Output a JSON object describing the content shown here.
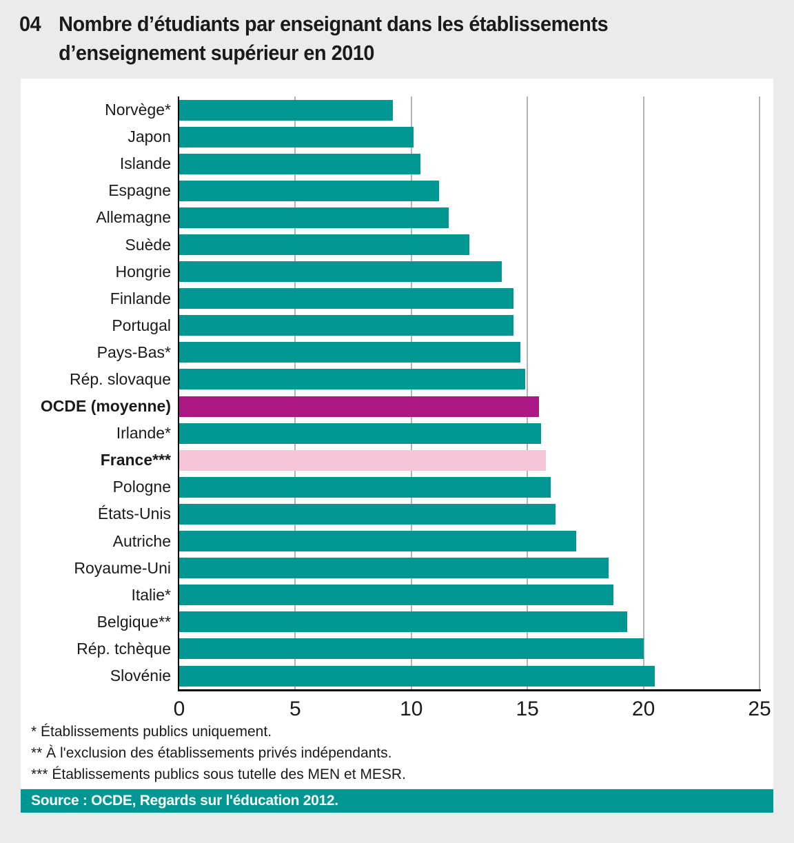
{
  "page": {
    "background": "#ebebeb",
    "panel_background": "#ffffff",
    "gridline_color": "#b3b3b3",
    "axis_color": "#000000"
  },
  "header": {
    "number": "04",
    "title_line1": "Nombre d’étudiants par enseignant dans les établissements",
    "title_line2": "d’enseignement supérieur en 2010"
  },
  "chart_data": {
    "type": "bar",
    "orientation": "horizontal",
    "title": "Nombre d’étudiants par enseignant dans les établissements d’enseignement supérieur en 2010",
    "xlabel": "",
    "ylabel": "",
    "xlim": [
      0,
      25
    ],
    "x_ticks": [
      0,
      5,
      10,
      15,
      20,
      25
    ],
    "grid": true,
    "default_bar_color": "#009692",
    "highlight_colors": {
      "ocde": "#ab1884",
      "france": "#f4c4d9"
    },
    "bars": [
      {
        "label": "Norvège*",
        "value": 9.2,
        "color": "#009692",
        "bold": false
      },
      {
        "label": "Japon",
        "value": 10.1,
        "color": "#009692",
        "bold": false
      },
      {
        "label": "Islande",
        "value": 10.4,
        "color": "#009692",
        "bold": false
      },
      {
        "label": "Espagne",
        "value": 11.2,
        "color": "#009692",
        "bold": false
      },
      {
        "label": "Allemagne",
        "value": 11.6,
        "color": "#009692",
        "bold": false
      },
      {
        "label": "Suède",
        "value": 12.5,
        "color": "#009692",
        "bold": false
      },
      {
        "label": "Hongrie",
        "value": 13.9,
        "color": "#009692",
        "bold": false
      },
      {
        "label": "Finlande",
        "value": 14.4,
        "color": "#009692",
        "bold": false
      },
      {
        "label": "Portugal",
        "value": 14.4,
        "color": "#009692",
        "bold": false
      },
      {
        "label": "Pays-Bas*",
        "value": 14.7,
        "color": "#009692",
        "bold": false
      },
      {
        "label": "Rép. slovaque",
        "value": 14.9,
        "color": "#009692",
        "bold": false
      },
      {
        "label": "OCDE (moyenne)",
        "value": 15.5,
        "color": "#ab1884",
        "bold": true
      },
      {
        "label": "Irlande*",
        "value": 15.6,
        "color": "#009692",
        "bold": false
      },
      {
        "label": "France***",
        "value": 15.8,
        "color": "#f4c4d9",
        "bold": true
      },
      {
        "label": "Pologne",
        "value": 16.0,
        "color": "#009692",
        "bold": false
      },
      {
        "label": "États-Unis",
        "value": 16.2,
        "color": "#009692",
        "bold": false
      },
      {
        "label": "Autriche",
        "value": 17.1,
        "color": "#009692",
        "bold": false
      },
      {
        "label": "Royaume-Uni",
        "value": 18.5,
        "color": "#009692",
        "bold": false
      },
      {
        "label": "Italie*",
        "value": 18.7,
        "color": "#009692",
        "bold": false
      },
      {
        "label": "Belgique**",
        "value": 19.3,
        "color": "#009692",
        "bold": false
      },
      {
        "label": "Rép. tchèque",
        "value": 20.0,
        "color": "#009692",
        "bold": false
      },
      {
        "label": "Slovénie",
        "value": 20.5,
        "color": "#009692",
        "bold": false
      }
    ]
  },
  "footnotes": [
    "* Établissements publics uniquement.",
    "** À l'exclusion des établissements privés indépendants.",
    "*** Établissements publics sous tutelle des MEN et MESR."
  ],
  "source": {
    "text": "Source : OCDE, Regards sur l'éducation 2012.",
    "background": "#009692",
    "color": "#ffffff"
  }
}
